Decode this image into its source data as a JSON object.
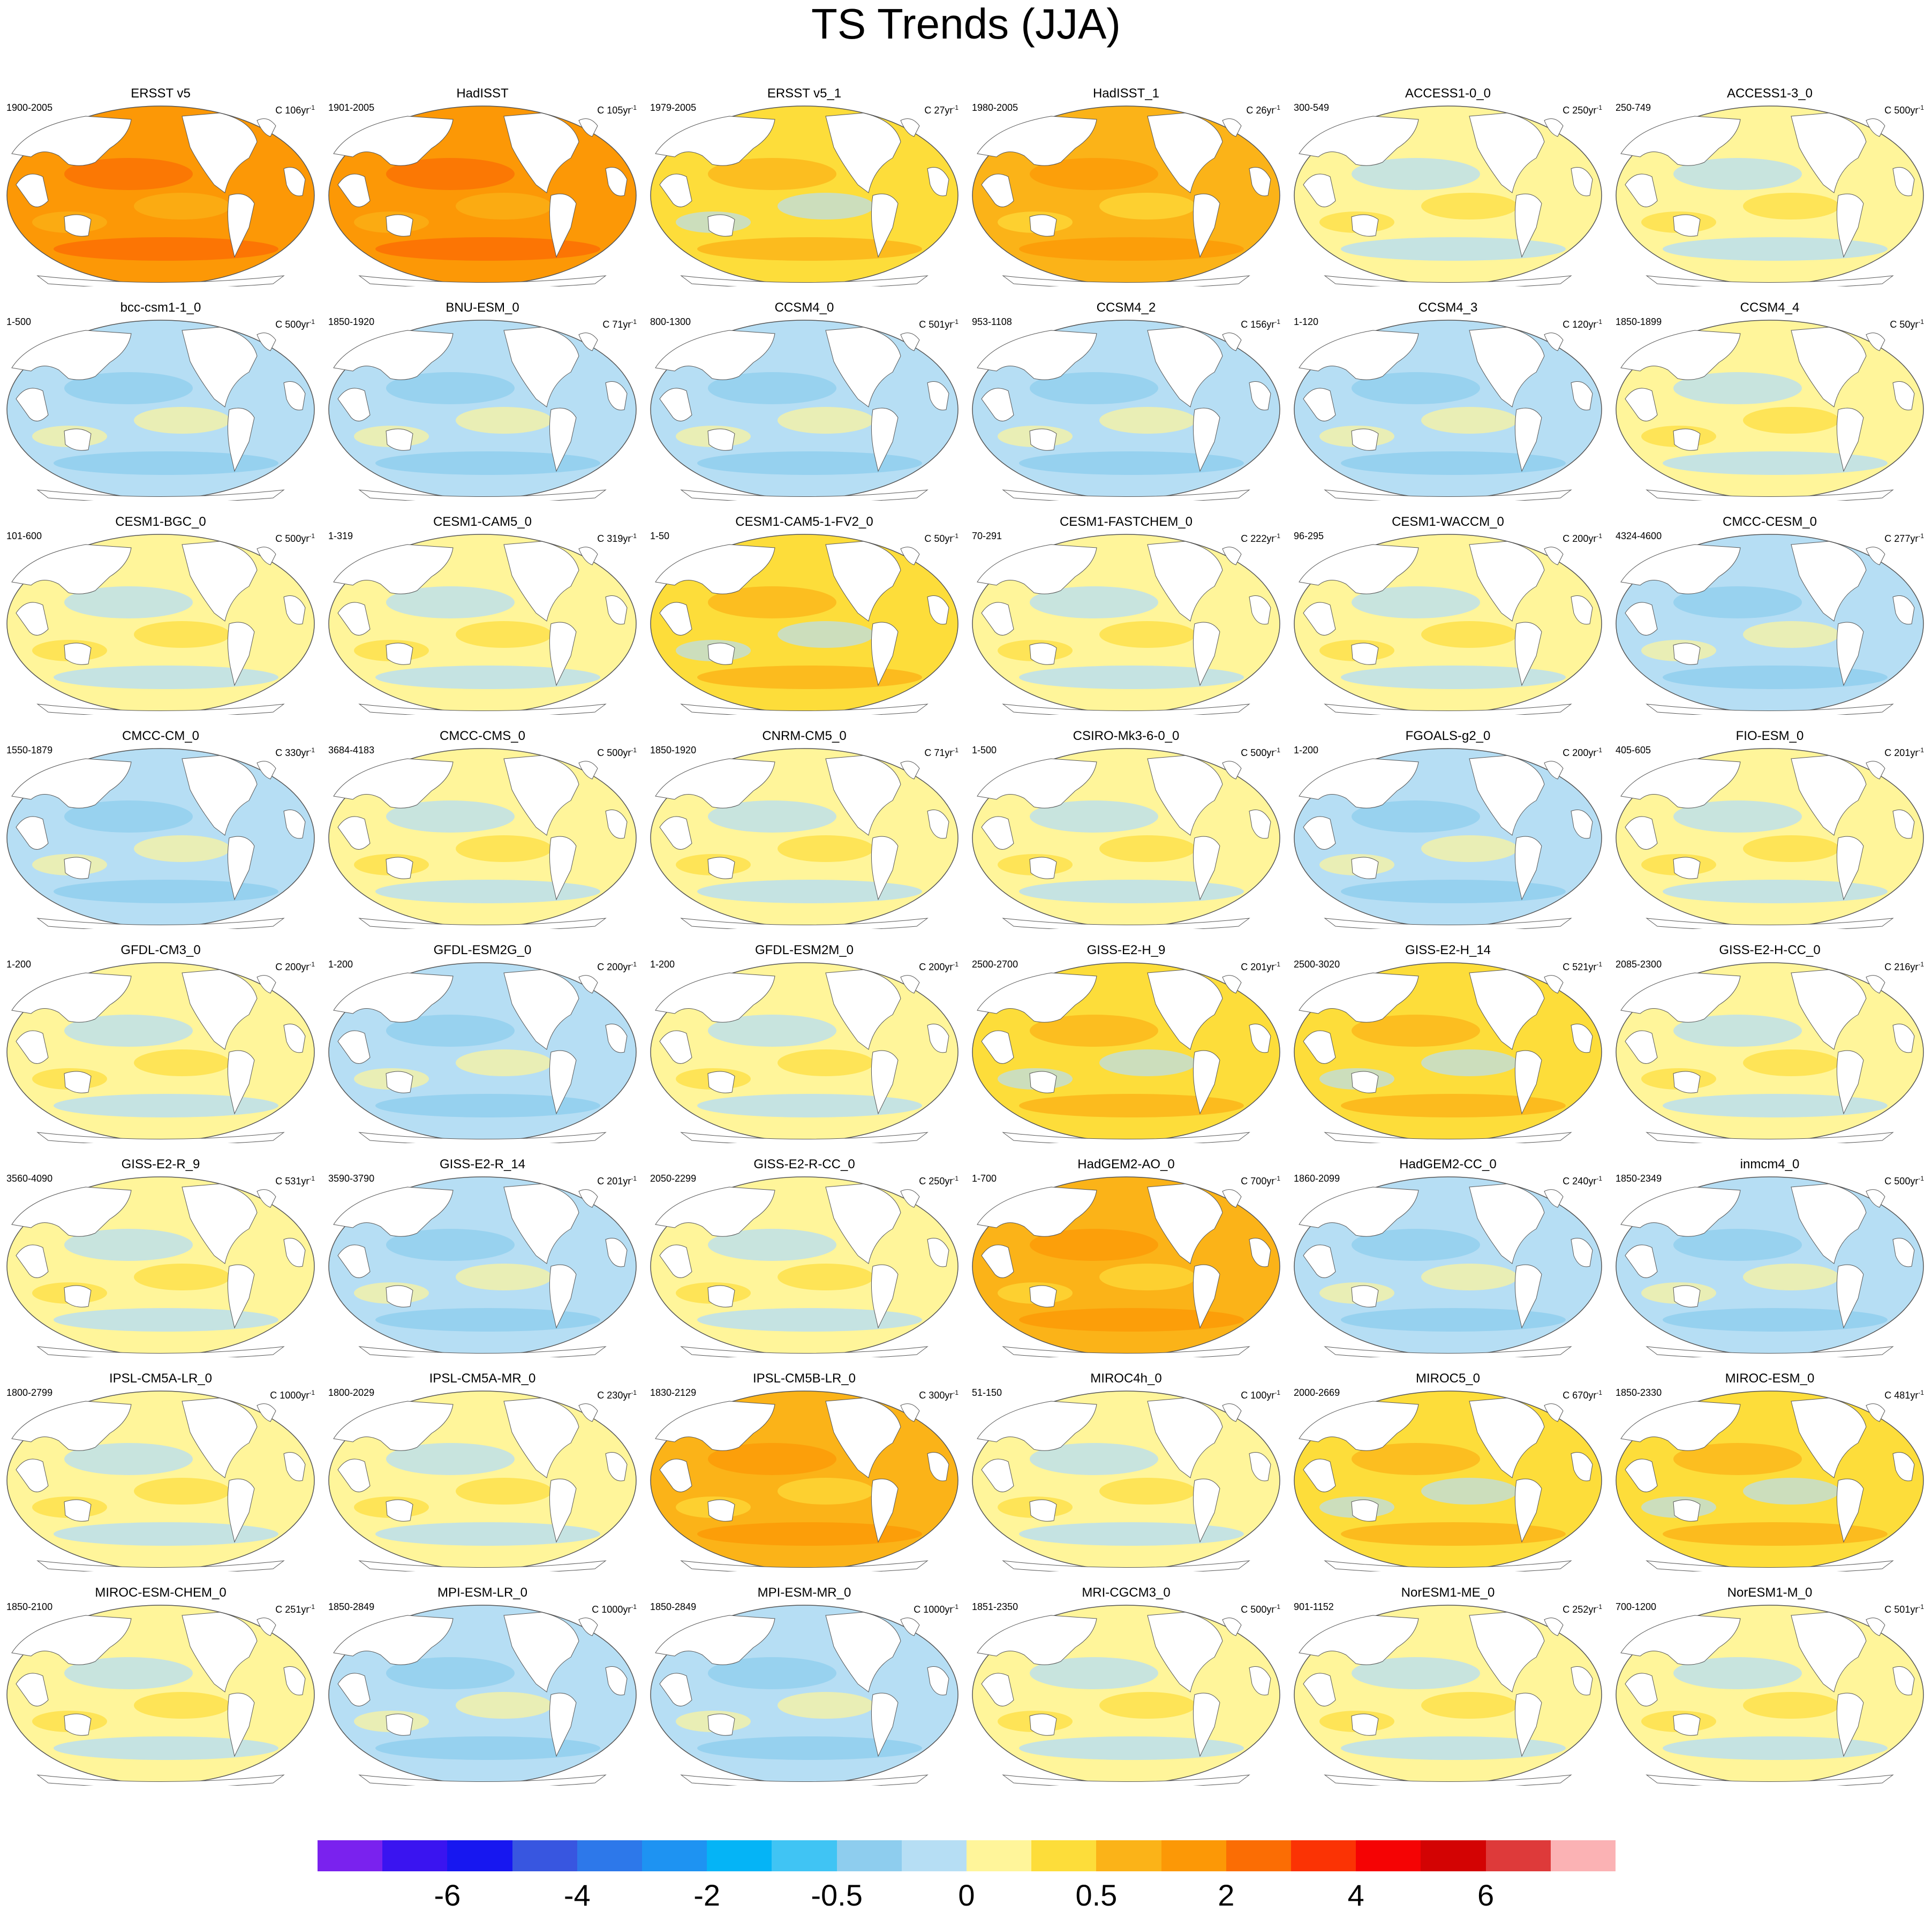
{
  "title": "TS Trends (JJA)",
  "units_prefix": "C",
  "units_suffix": "yr",
  "units_exponent": "-1",
  "panels": [
    {
      "name": "ERSST v5",
      "years": "1900-2005",
      "span": "106",
      "tone": 3
    },
    {
      "name": "HadISST",
      "years": "1901-2005",
      "span": "105",
      "tone": 3
    },
    {
      "name": "ERSST v5_1",
      "years": "1979-2005",
      "span": "27",
      "tone": 1
    },
    {
      "name": "HadISST_1",
      "years": "1980-2005",
      "span": "26",
      "tone": 2
    },
    {
      "name": "ACCESS1-0_0",
      "years": "300-549",
      "span": "250",
      "tone": 0
    },
    {
      "name": "ACCESS1-3_0",
      "years": "250-749",
      "span": "500",
      "tone": 0
    },
    {
      "name": "bcc-csm1-1_0",
      "years": "1-500",
      "span": "500",
      "tone": -1
    },
    {
      "name": "BNU-ESM_0",
      "years": "1850-1920",
      "span": "71",
      "tone": -1
    },
    {
      "name": "CCSM4_0",
      "years": "800-1300",
      "span": "501",
      "tone": -1
    },
    {
      "name": "CCSM4_2",
      "years": "953-1108",
      "span": "156",
      "tone": -1
    },
    {
      "name": "CCSM4_3",
      "years": "1-120",
      "span": "120",
      "tone": -1
    },
    {
      "name": "CCSM4_4",
      "years": "1850-1899",
      "span": "50",
      "tone": 0
    },
    {
      "name": "CESM1-BGC_0",
      "years": "101-600",
      "span": "500",
      "tone": 0
    },
    {
      "name": "CESM1-CAM5_0",
      "years": "1-319",
      "span": "319",
      "tone": 0
    },
    {
      "name": "CESM1-CAM5-1-FV2_0",
      "years": "1-50",
      "span": "50",
      "tone": 1
    },
    {
      "name": "CESM1-FASTCHEM_0",
      "years": "70-291",
      "span": "222",
      "tone": 0
    },
    {
      "name": "CESM1-WACCM_0",
      "years": "96-295",
      "span": "200",
      "tone": 0
    },
    {
      "name": "CMCC-CESM_0",
      "years": "4324-4600",
      "span": "277",
      "tone": -1
    },
    {
      "name": "CMCC-CM_0",
      "years": "1550-1879",
      "span": "330",
      "tone": -1
    },
    {
      "name": "CMCC-CMS_0",
      "years": "3684-4183",
      "span": "500",
      "tone": 0
    },
    {
      "name": "CNRM-CM5_0",
      "years": "1850-1920",
      "span": "71",
      "tone": 0
    },
    {
      "name": "CSIRO-Mk3-6-0_0",
      "years": "1-500",
      "span": "500",
      "tone": 0
    },
    {
      "name": "FGOALS-g2_0",
      "years": "1-200",
      "span": "200",
      "tone": -1
    },
    {
      "name": "FIO-ESM_0",
      "years": "405-605",
      "span": "201",
      "tone": 0
    },
    {
      "name": "GFDL-CM3_0",
      "years": "1-200",
      "span": "200",
      "tone": 0
    },
    {
      "name": "GFDL-ESM2G_0",
      "years": "1-200",
      "span": "200",
      "tone": -1
    },
    {
      "name": "GFDL-ESM2M_0",
      "years": "1-200",
      "span": "200",
      "tone": 0
    },
    {
      "name": "GISS-E2-H_9",
      "years": "2500-2700",
      "span": "201",
      "tone": 1
    },
    {
      "name": "GISS-E2-H_14",
      "years": "2500-3020",
      "span": "521",
      "tone": 1
    },
    {
      "name": "GISS-E2-H-CC_0",
      "years": "2085-2300",
      "span": "216",
      "tone": 0
    },
    {
      "name": "GISS-E2-R_9",
      "years": "3560-4090",
      "span": "531",
      "tone": 0
    },
    {
      "name": "GISS-E2-R_14",
      "years": "3590-3790",
      "span": "201",
      "tone": -1
    },
    {
      "name": "GISS-E2-R-CC_0",
      "years": "2050-2299",
      "span": "250",
      "tone": 0
    },
    {
      "name": "HadGEM2-AO_0",
      "years": "1-700",
      "span": "700",
      "tone": 2
    },
    {
      "name": "HadGEM2-CC_0",
      "years": "1860-2099",
      "span": "240",
      "tone": -1
    },
    {
      "name": "inmcm4_0",
      "years": "1850-2349",
      "span": "500",
      "tone": -1
    },
    {
      "name": "IPSL-CM5A-LR_0",
      "years": "1800-2799",
      "span": "1000",
      "tone": 0
    },
    {
      "name": "IPSL-CM5A-MR_0",
      "years": "1800-2029",
      "span": "230",
      "tone": 0
    },
    {
      "name": "IPSL-CM5B-LR_0",
      "years": "1830-2129",
      "span": "300",
      "tone": 2
    },
    {
      "name": "MIROC4h_0",
      "years": "51-150",
      "span": "100",
      "tone": 0
    },
    {
      "name": "MIROC5_0",
      "years": "2000-2669",
      "span": "670",
      "tone": 1
    },
    {
      "name": "MIROC-ESM_0",
      "years": "1850-2330",
      "span": "481",
      "tone": 1
    },
    {
      "name": "MIROC-ESM-CHEM_0",
      "years": "1850-2100",
      "span": "251",
      "tone": 0
    },
    {
      "name": "MPI-ESM-LR_0",
      "years": "1850-2849",
      "span": "1000",
      "tone": -1
    },
    {
      "name": "MPI-ESM-MR_0",
      "years": "1850-2849",
      "span": "1000",
      "tone": -1
    },
    {
      "name": "MRI-CGCM3_0",
      "years": "1851-2350",
      "span": "500",
      "tone": 0
    },
    {
      "name": "NorESM1-ME_0",
      "years": "901-1152",
      "span": "252",
      "tone": 0
    },
    {
      "name": "NorESM1-M_0",
      "years": "700-1200",
      "span": "501",
      "tone": 0
    }
  ],
  "colorbar": {
    "colors": [
      "#7a22ee",
      "#3a14f0",
      "#1717f0",
      "#3856e0",
      "#2d78ea",
      "#1e93f2",
      "#05b4f6",
      "#40c4f4",
      "#8ecdee",
      "#b6def4",
      "#fff59a",
      "#fddd3a",
      "#fbb318",
      "#fc9806",
      "#fb6d04",
      "#fb3304",
      "#f50304",
      "#d30303",
      "#de3a3a",
      "#fbb2b4"
    ],
    "labels": [
      "-6",
      "-4",
      "-2",
      "-0.5",
      "0",
      "0.5",
      "2",
      "4",
      "6"
    ]
  }
}
